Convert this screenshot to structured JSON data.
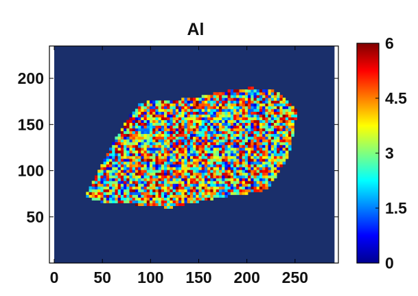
{
  "chart_data": {
    "type": "heatmap",
    "title": "Al",
    "xlabel": "",
    "ylabel": "",
    "xlim": [
      -5,
      295
    ],
    "ylim": [
      0,
      235
    ],
    "x_ticks": [
      "0",
      "50",
      "100",
      "150",
      "200",
      "250"
    ],
    "y_ticks": [
      "50",
      "100",
      "150",
      "200"
    ],
    "colorbar": {
      "min": 0,
      "max": 6,
      "ticks": [
        "0",
        "1.5",
        "3",
        "4.5",
        "6"
      ],
      "colormap": "jet"
    },
    "background_value": 0,
    "region_outline": [
      [
        33,
        73
      ],
      [
        57,
        123
      ],
      [
        78,
        158
      ],
      [
        90,
        174
      ],
      [
        118,
        176
      ],
      [
        152,
        180
      ],
      [
        175,
        186
      ],
      [
        205,
        190
      ],
      [
        232,
        186
      ],
      [
        252,
        166
      ],
      [
        248,
        140
      ],
      [
        243,
        116
      ],
      [
        222,
        80
      ],
      [
        200,
        75
      ],
      [
        175,
        72
      ],
      [
        148,
        66
      ],
      [
        120,
        60
      ],
      [
        90,
        63
      ],
      [
        62,
        65
      ],
      [
        45,
        67
      ]
    ],
    "region_value_range": [
      0.5,
      6
    ]
  },
  "colors": {
    "background": "#1a2f6b",
    "axis": "#000000"
  }
}
